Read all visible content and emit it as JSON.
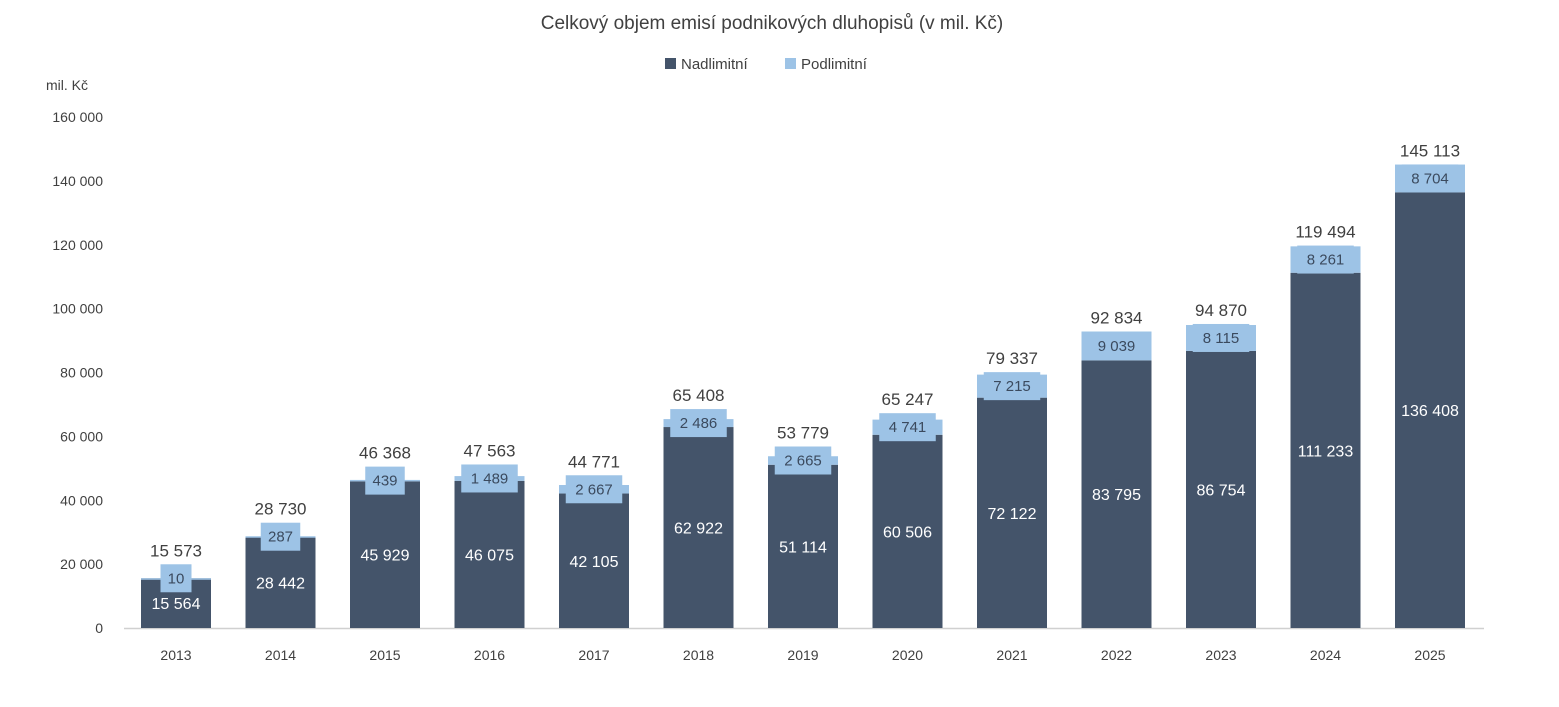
{
  "chart_data": {
    "type": "bar",
    "stacked": true,
    "title": "Celkový objem emisí podnikových dluhopisů (v mil. Kč)",
    "ylabel": "mil. Kč",
    "xlabel": "",
    "ylim": [
      0,
      160000
    ],
    "yticks": [
      0,
      20000,
      40000,
      60000,
      80000,
      100000,
      120000,
      140000,
      160000
    ],
    "ytick_labels": [
      "0",
      "20 000",
      "40 000",
      "60 000",
      "80 000",
      "100 000",
      "120 000",
      "140 000",
      "160 000"
    ],
    "legend_position": "top-center",
    "grid": false,
    "categories": [
      "2013",
      "2014",
      "2015",
      "2016",
      "2017",
      "2018",
      "2019",
      "2020",
      "2021",
      "2022",
      "2023",
      "2024",
      "2025"
    ],
    "series": [
      {
        "name": "Nadlimitní",
        "color": "#44546a",
        "values": [
          15564,
          28442,
          45929,
          46075,
          42105,
          62922,
          51114,
          60506,
          72122,
          83795,
          86754,
          111233,
          136408
        ],
        "labels": [
          "15 564",
          "28 442",
          "45 929",
          "46 075",
          "42 105",
          "62 922",
          "51 114",
          "60 506",
          "72 122",
          "83 795",
          "86 754",
          "111 233",
          "136 408"
        ]
      },
      {
        "name": "Podlimitní",
        "color": "#9dc3e6",
        "values": [
          10,
          287,
          439,
          1489,
          2667,
          2486,
          2665,
          4741,
          7215,
          9039,
          8115,
          8261,
          8704
        ],
        "labels": [
          "10",
          "287",
          "439",
          "1 489",
          "2 667",
          "2 486",
          "2 665",
          "4 741",
          "7 215",
          "9 039",
          "8 115",
          "8 261",
          "8 704"
        ]
      }
    ],
    "totals": [
      15573,
      28730,
      46368,
      47563,
      44771,
      65408,
      53779,
      65247,
      79337,
      92834,
      94870,
      119494,
      145113
    ],
    "total_labels": [
      "15 573",
      "28 730",
      "46 368",
      "47 563",
      "44 771",
      "65 408",
      "53 779",
      "65 247",
      "79 337",
      "92 834",
      "94 870",
      "119 494",
      "145 113"
    ]
  }
}
